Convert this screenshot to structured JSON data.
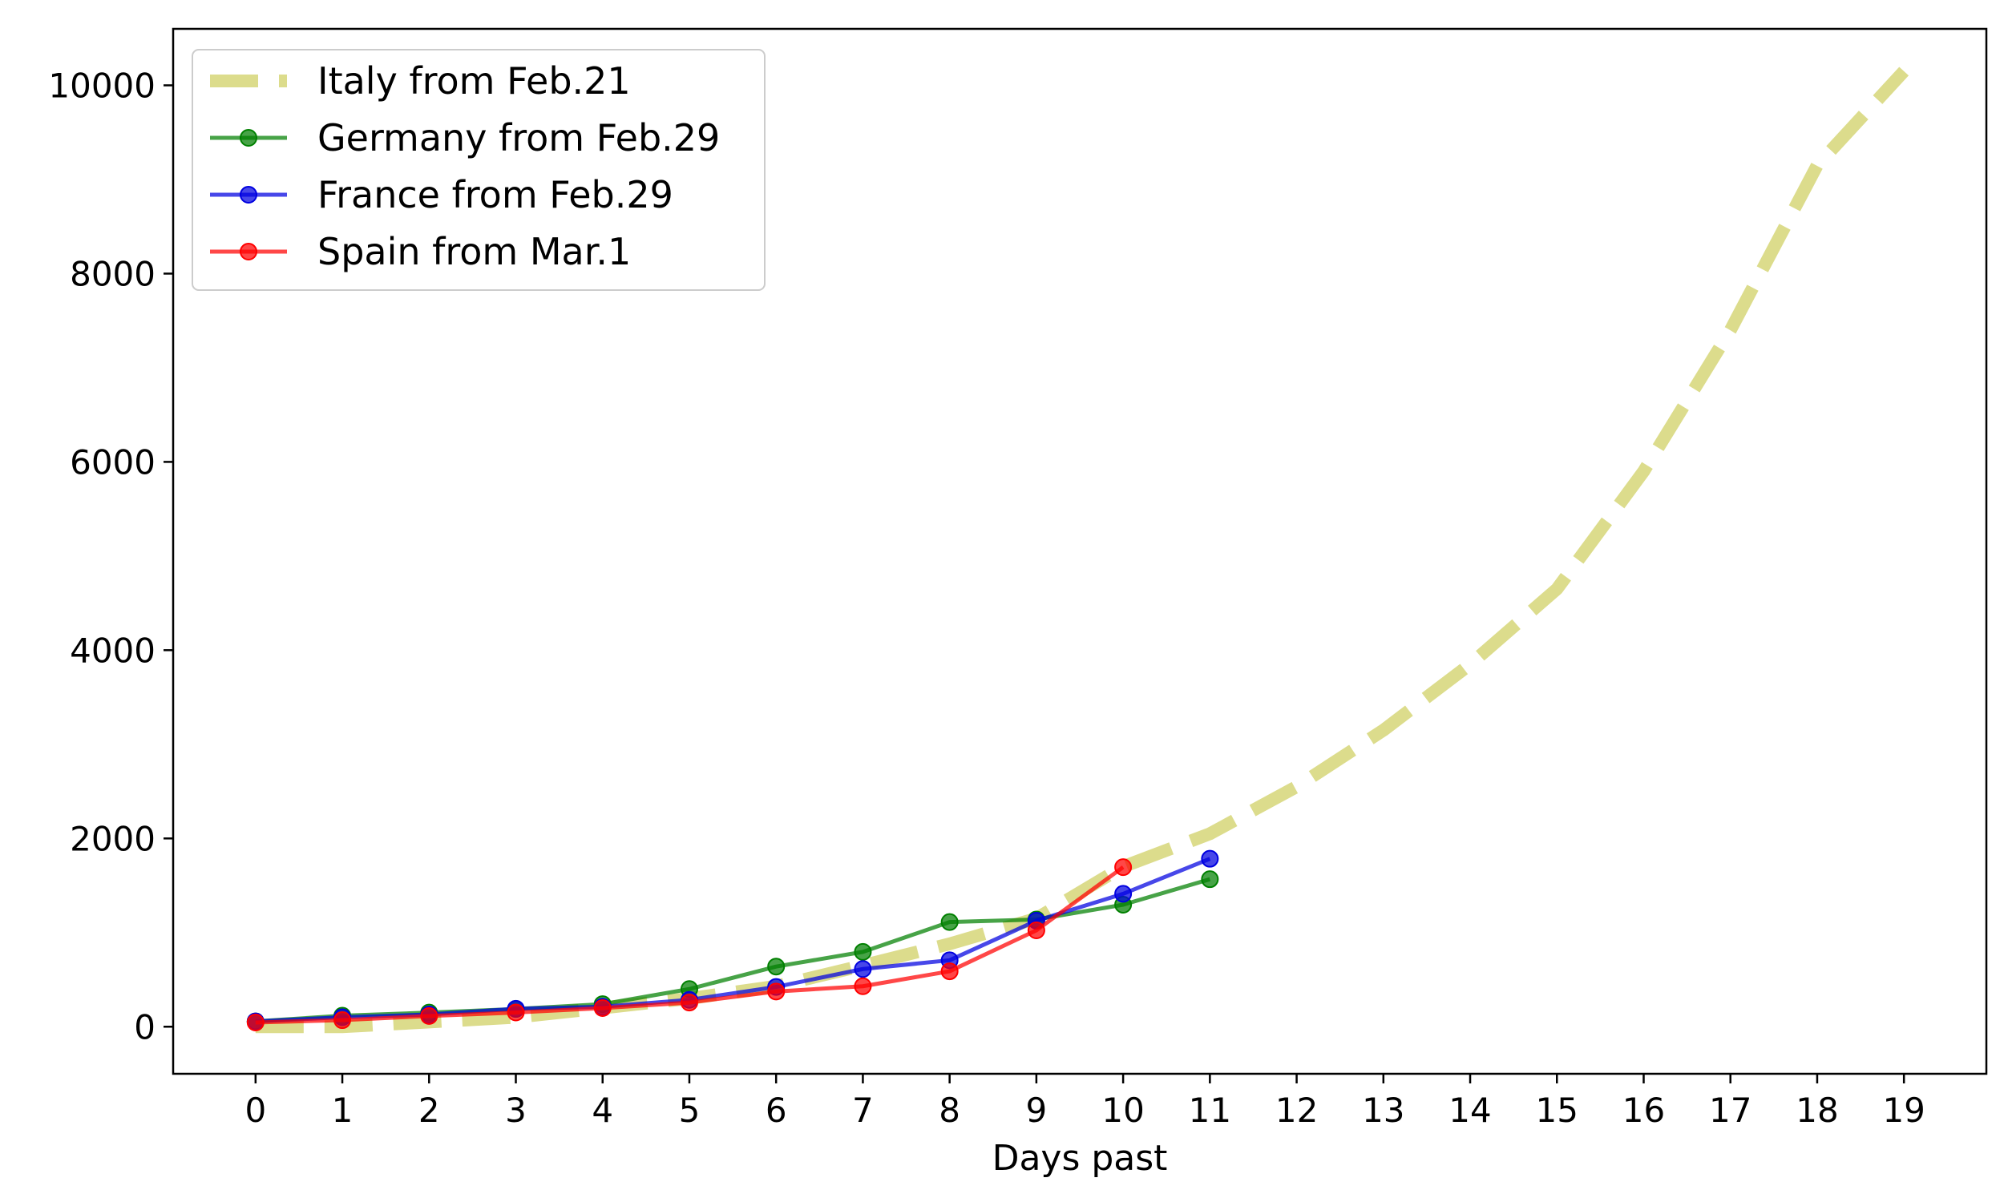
{
  "chart_data": {
    "type": "line",
    "title": "",
    "xlabel": "Days past",
    "ylabel": "",
    "xlim": [
      -0.95,
      19.95
    ],
    "ylim": [
      -500,
      10600
    ],
    "xticks": [
      0,
      1,
      2,
      3,
      4,
      5,
      6,
      7,
      8,
      9,
      10,
      11,
      12,
      13,
      14,
      15,
      16,
      17,
      18,
      19
    ],
    "yticks": [
      0,
      2000,
      4000,
      6000,
      8000,
      10000
    ],
    "grid": false,
    "legend_position": "top-left",
    "series": [
      {
        "name": "Italy from Feb.21",
        "style": "dashed",
        "markers": false,
        "color": "#dcdc8c",
        "x": [
          0,
          1,
          2,
          3,
          4,
          5,
          6,
          7,
          8,
          9,
          10,
          11,
          12,
          13,
          14,
          15,
          16,
          17,
          18,
          19
        ],
        "y": [
          0,
          0,
          50,
          100,
          200,
          300,
          430,
          650,
          880,
          1150,
          1700,
          2050,
          2550,
          3150,
          3850,
          4650,
          5900,
          7400,
          9150,
          10150
        ]
      },
      {
        "name": "Germany from Feb.29",
        "style": "solid",
        "markers": true,
        "color": "#008000",
        "x": [
          0,
          1,
          2,
          3,
          4,
          5,
          6,
          7,
          8,
          9,
          10,
          11
        ],
        "y": [
          57,
          117,
          150,
          188,
          240,
          400,
          639,
          795,
          1112,
          1139,
          1296,
          1567
        ]
      },
      {
        "name": "France from Feb.29",
        "style": "solid",
        "markers": true,
        "color": "#0000e0",
        "x": [
          0,
          1,
          2,
          3,
          4,
          5,
          6,
          7,
          8,
          9,
          10,
          11
        ],
        "y": [
          57,
          100,
          130,
          191,
          212,
          285,
          423,
          613,
          706,
          1126,
          1412,
          1784
        ]
      },
      {
        "name": "Spain from Mar.1",
        "style": "solid",
        "markers": true,
        "color": "#ff0000",
        "x": [
          0,
          1,
          2,
          3,
          4,
          5,
          6,
          7,
          8,
          9,
          10
        ],
        "y": [
          45,
          70,
          114,
          151,
          198,
          257,
          374,
          430,
          589,
          1024,
          1695
        ]
      }
    ]
  }
}
